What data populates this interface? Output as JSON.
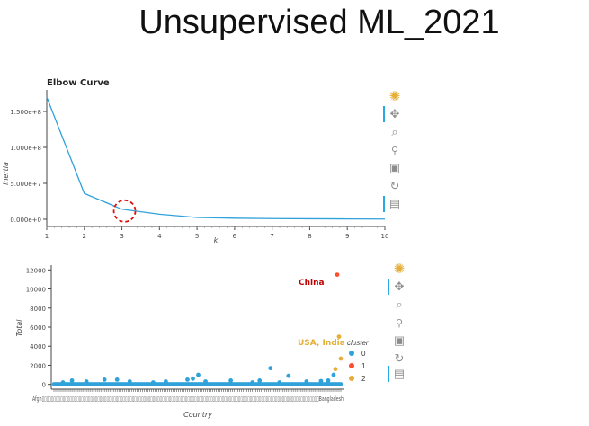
{
  "slide": {
    "title": "Unsupervised ML_2021"
  },
  "chart_data": [
    {
      "type": "line",
      "title": "Elbow Curve",
      "xlabel": "k",
      "ylabel": "inertia",
      "x": [
        1,
        2,
        3,
        4,
        5,
        6,
        7,
        8,
        9,
        10
      ],
      "values": [
        170000000,
        36000000,
        14000000,
        7000000,
        2500000,
        1500000,
        900000,
        700000,
        500000,
        300000
      ],
      "xlim": [
        1,
        10
      ],
      "ylim": [
        -10000000,
        180000000
      ],
      "xticks": [
        "1",
        "2",
        "3",
        "4",
        "5",
        "6",
        "7",
        "8",
        "9",
        "10"
      ],
      "yticks": [
        {
          "value": 0,
          "label": "0.000e+0"
        },
        {
          "value": 50000000,
          "label": "5.000e+7"
        },
        {
          "value": 100000000,
          "label": "1.000e+8"
        },
        {
          "value": 150000000,
          "label": "1.500e+8"
        }
      ],
      "annotation": {
        "x": 3,
        "y": 14000000,
        "shape": "dashed-circle",
        "color": "#dd1111"
      },
      "line_color": "#30a2da"
    },
    {
      "type": "scatter",
      "xlabel": "Country",
      "ylabel": "Total",
      "ylim": [
        -500,
        12500
      ],
      "yticks": [
        0,
        2000,
        4000,
        6000,
        8000,
        10000,
        12000
      ],
      "xtick_prefix": "Afgh",
      "xtick_suffix": "Bangladesh",
      "legend": {
        "title": "cluster",
        "position": "right",
        "items": [
          {
            "label": "0",
            "color": "#30a2da"
          },
          {
            "label": "1",
            "color": "#fc4f30"
          },
          {
            "label": "2",
            "color": "#e5ae38"
          }
        ]
      },
      "annotations": [
        {
          "text": "China",
          "color": "#c00000"
        },
        {
          "text": "USA, India",
          "color": "#e5ae38"
        }
      ],
      "n_countries": 160,
      "series": [
        {
          "name": "0",
          "color": "#30a2da",
          "points": [
            [
              5,
              200
            ],
            [
              10,
              400
            ],
            [
              18,
              300
            ],
            [
              28,
              500
            ],
            [
              35,
              500
            ],
            [
              42,
              300
            ],
            [
              55,
              200
            ],
            [
              62,
              300
            ],
            [
              74,
              500
            ],
            [
              77,
              600
            ],
            [
              80,
              1000
            ],
            [
              84,
              300
            ],
            [
              98,
              400
            ],
            [
              110,
              200
            ],
            [
              114,
              400
            ],
            [
              120,
              1700
            ],
            [
              125,
              200
            ],
            [
              130,
              900
            ],
            [
              140,
              300
            ],
            [
              148,
              350
            ],
            [
              152,
              400
            ],
            [
              155,
              1000
            ]
          ]
        },
        {
          "name": "1",
          "color": "#fc4f30",
          "points": [
            [
              157,
              11500
            ]
          ]
        },
        {
          "name": "2",
          "color": "#e5ae38",
          "points": [
            [
              158,
              5000
            ],
            [
              159,
              2700
            ],
            [
              156,
              1600
            ]
          ]
        }
      ]
    }
  ]
}
